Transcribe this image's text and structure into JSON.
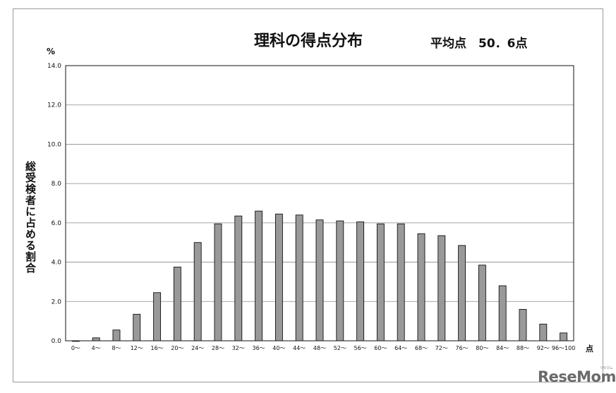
{
  "page": {
    "title": "理科の得点分布",
    "subtitle": "平均点　50．6点",
    "watermark": "ReseMom",
    "watermark_small": "リセマム"
  },
  "chart_data": {
    "type": "bar",
    "title": "理科の得点分布",
    "subtitle": "平均点　50．6点",
    "ylabel": "総受検者に占める割合",
    "y_unit": "%",
    "x_unit": "点",
    "ylim": [
      0,
      14
    ],
    "yticks": [
      "0.0",
      "2.0",
      "4.0",
      "6.0",
      "8.0",
      "10.0",
      "12.0",
      "14.0"
    ],
    "grid": true,
    "bar_color": "#999999",
    "categories": [
      "0～",
      "4～",
      "8～",
      "12～",
      "16～",
      "20～",
      "24～",
      "28～",
      "32～",
      "36～",
      "40～",
      "44～",
      "48～",
      "52～",
      "56～",
      "60～",
      "64～",
      "68～",
      "72～",
      "76～",
      "80～",
      "84～",
      "88～",
      "92～",
      "96～100"
    ],
    "values": [
      0.0,
      0.15,
      0.55,
      1.35,
      2.45,
      3.75,
      5.0,
      5.95,
      6.35,
      6.6,
      6.45,
      6.4,
      6.15,
      6.1,
      6.05,
      5.95,
      5.95,
      5.45,
      5.35,
      4.85,
      3.85,
      2.8,
      1.6,
      0.85,
      0.4
    ]
  }
}
